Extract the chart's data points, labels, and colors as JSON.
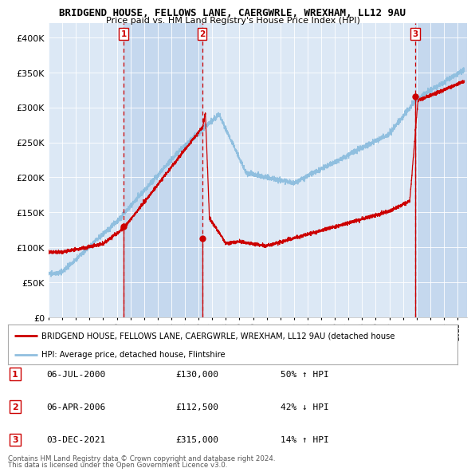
{
  "title": "BRIDGEND HOUSE, FELLOWS LANE, CAERGWRLE, WREXHAM, LL12 9AU",
  "subtitle": "Price paid vs. HM Land Registry's House Price Index (HPI)",
  "ylim": [
    0,
    420000
  ],
  "yticks": [
    0,
    50000,
    100000,
    150000,
    200000,
    250000,
    300000,
    350000,
    400000
  ],
  "ytick_labels": [
    "£0",
    "£50K",
    "£100K",
    "£150K",
    "£200K",
    "£250K",
    "£300K",
    "£350K",
    "£400K"
  ],
  "x_start_year": 1995.0,
  "x_end_year": 2025.7,
  "sale_color": "#cc0000",
  "hpi_color": "#90bfdf",
  "background_color": "#ffffff",
  "plot_bg_color": "#dce8f5",
  "shade_color": "#c5d8ee",
  "grid_color": "#ffffff",
  "transactions": [
    {
      "label": "1",
      "date_str": "06-JUL-2000",
      "year": 2000.51,
      "price": 130000
    },
    {
      "label": "2",
      "date_str": "06-APR-2006",
      "year": 2006.26,
      "price": 112500
    },
    {
      "label": "3",
      "date_str": "03-DEC-2021",
      "year": 2021.92,
      "price": 315000
    }
  ],
  "legend_line1": "BRIDGEND HOUSE, FELLOWS LANE, CAERGWRLE, WREXHAM, LL12 9AU (detached house",
  "legend_line2": "HPI: Average price, detached house, Flintshire",
  "footnote1": "Contains HM Land Registry data © Crown copyright and database right 2024.",
  "footnote2": "This data is licensed under the Open Government Licence v3.0.",
  "table_rows": [
    {
      "num": "1",
      "date": "06-JUL-2000",
      "price": "£130,000",
      "pct_hpi": "50% ↑ HPI"
    },
    {
      "num": "2",
      "date": "06-APR-2006",
      "price": "£112,500",
      "pct_hpi": "42% ↓ HPI"
    },
    {
      "num": "3",
      "date": "03-DEC-2021",
      "price": "£315,000",
      "pct_hpi": "14% ↑ HPI"
    }
  ]
}
